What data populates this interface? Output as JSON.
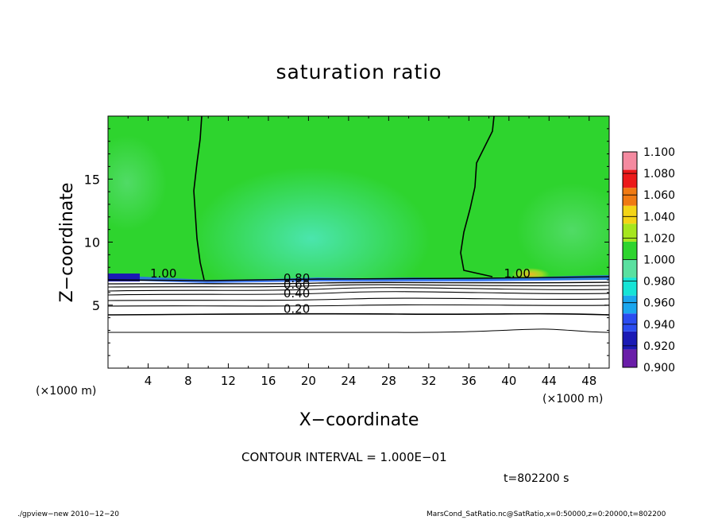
{
  "chart_data": {
    "type": "heatmap",
    "title": "saturation ratio",
    "xlabel": "X−coordinate",
    "ylabel": "Z−coordinate",
    "x_unit": "(×1000 m)",
    "y_unit": "(×1000 m)",
    "xlim": [
      0,
      50
    ],
    "ylim": [
      0,
      20
    ],
    "x_ticks": [
      4,
      8,
      12,
      16,
      20,
      24,
      28,
      32,
      36,
      40,
      44,
      48
    ],
    "y_ticks": [
      5,
      10,
      15
    ],
    "colorbar": {
      "levels": [
        "0.900",
        "0.920",
        "0.940",
        "0.960",
        "0.980",
        "1.000",
        "1.020",
        "1.040",
        "1.060",
        "1.080",
        "1.100"
      ],
      "colors": [
        "#6a1ea8",
        "#1a1ab4",
        "#2a4cf0",
        "#1aa6ee",
        "#16e4d6",
        "#5ae0a0",
        "#2ed42e",
        "#a6e61e",
        "#f4d416",
        "#f07a12",
        "#ec1a1a",
        "#f48aa0"
      ]
    },
    "contour_labels": [
      {
        "text": "1.00",
        "x": 4.2,
        "z": 7.2
      },
      {
        "text": "0.80",
        "x": 17.5,
        "z": 6.8
      },
      {
        "text": "0.60",
        "x": 17.5,
        "z": 6.3
      },
      {
        "text": "0.40",
        "x": 17.5,
        "z": 5.6
      },
      {
        "text": "0.20",
        "x": 17.5,
        "z": 4.4
      },
      {
        "text": "1.00",
        "x": 39.5,
        "z": 7.2
      }
    ],
    "contour_interval": "CONTOUR INTERVAL = 1.000E−01",
    "time_label": "t=802200 s"
  },
  "footer": {
    "left": "./gpview−new   2010−12−20",
    "right": "MarsCond_SatRatio.nc@SatRatio,x=0:50000,z=0:20000,t=802200"
  }
}
